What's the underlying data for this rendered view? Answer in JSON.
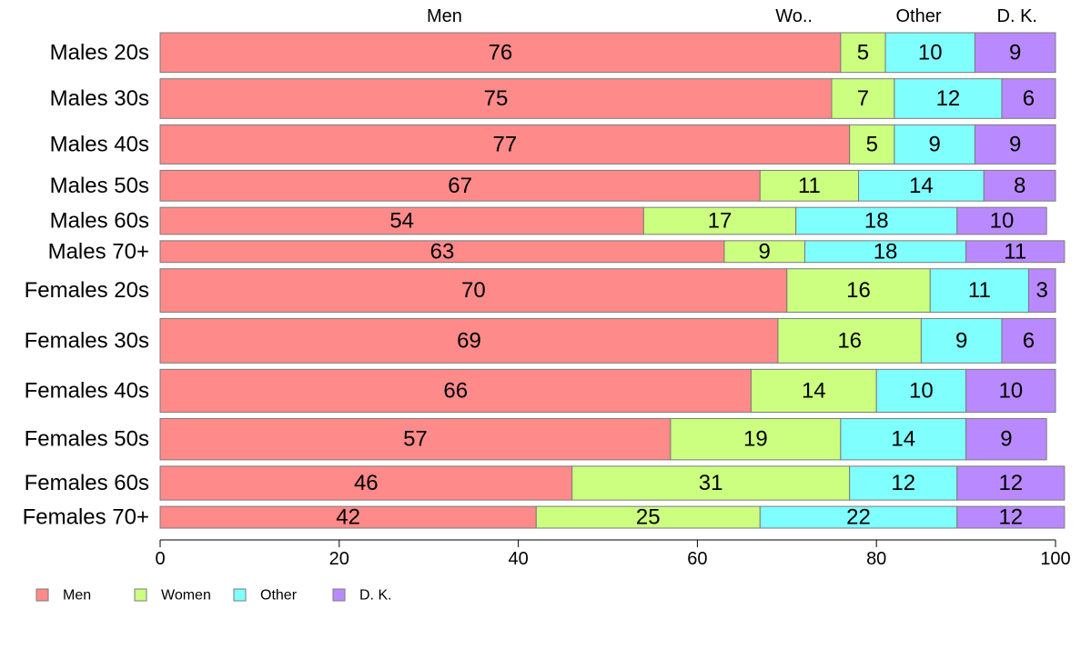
{
  "chart_data": {
    "type": "bar",
    "orientation": "horizontal",
    "stacked": true,
    "variable_bar_widths": true,
    "title": "",
    "xlabel": "",
    "ylabel": "",
    "xlim": [
      0,
      100
    ],
    "x_ticks": [
      "0",
      "20",
      "40",
      "60",
      "80",
      "100"
    ],
    "grid": false,
    "legend_position": "bottom-left",
    "top_labels": [
      "Men",
      "Wo..",
      "Other",
      "D. K."
    ],
    "categories": [
      "Males 20s",
      "Males 30s",
      "Males 40s",
      "Males 50s",
      "Males 60s",
      "Males 70+",
      "Females 20s",
      "Females 30s",
      "Females 40s",
      "Females 50s",
      "Females 60s",
      "Females 70+"
    ],
    "category_weights": [
      0.75,
      0.75,
      0.74,
      0.58,
      0.51,
      0.41,
      0.82,
      0.84,
      0.81,
      0.78,
      0.64,
      0.41
    ],
    "series": [
      {
        "name": "Men",
        "color": "#FF8A8A",
        "values": [
          76,
          75,
          77,
          67,
          54,
          63,
          70,
          69,
          66,
          57,
          46,
          42
        ]
      },
      {
        "name": "Women",
        "color": "#CCFF80",
        "values": [
          5,
          7,
          5,
          11,
          17,
          9,
          16,
          16,
          14,
          19,
          31,
          25
        ]
      },
      {
        "name": "Other",
        "color": "#80FFFF",
        "values": [
          10,
          12,
          9,
          14,
          18,
          18,
          11,
          9,
          10,
          14,
          12,
          22
        ]
      },
      {
        "name": "D. K.",
        "color": "#B98AFF",
        "values": [
          9,
          6,
          9,
          8,
          10,
          11,
          3,
          6,
          10,
          9,
          12,
          12
        ]
      }
    ]
  }
}
